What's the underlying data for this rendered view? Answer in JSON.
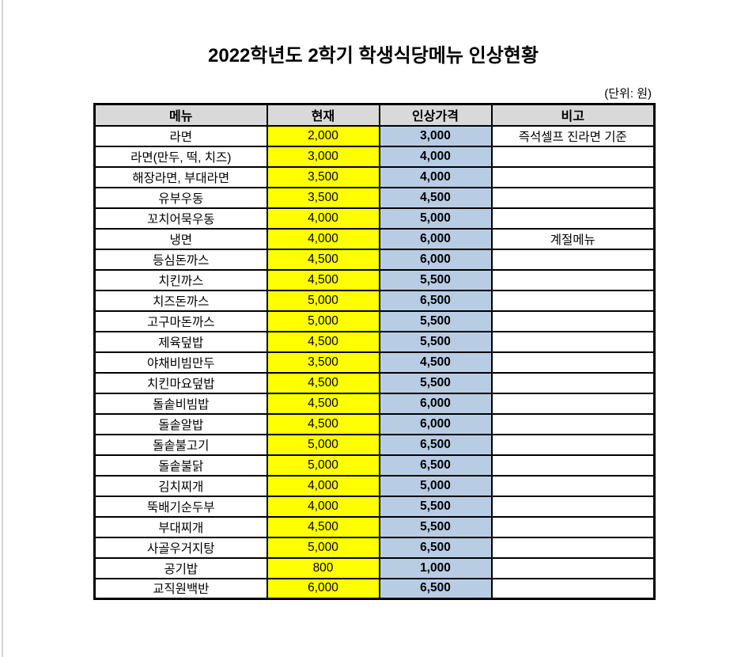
{
  "title": "2022학년도 2학기 학생식당메뉴 인상현황",
  "unit_note": "(단위: 원)",
  "colors": {
    "header_bg": "#d9d9d9",
    "current_bg": "#ffff00",
    "raised_bg": "#b8cce4",
    "raised_text": "#ff0000",
    "border": "#000000"
  },
  "columns": [
    "메뉴",
    "현재",
    "인상가격",
    "비고"
  ],
  "rows": [
    {
      "menu": "라면",
      "current": "2,000",
      "raised": "3,000",
      "note": "즉석셀프 진라면 기준"
    },
    {
      "menu": "라면(만두, 떡, 치즈)",
      "current": "3,000",
      "raised": "4,000",
      "note": ""
    },
    {
      "menu": "해장라면, 부대라면",
      "current": "3,500",
      "raised": "4,000",
      "note": ""
    },
    {
      "menu": "유부우동",
      "current": "3,500",
      "raised": "4,500",
      "note": ""
    },
    {
      "menu": "꼬치어묵우동",
      "current": "4,000",
      "raised": "5,000",
      "note": ""
    },
    {
      "menu": "냉면",
      "current": "4,000",
      "raised": "6,000",
      "note": "계절메뉴"
    },
    {
      "menu": "등심돈까스",
      "current": "4,500",
      "raised": "6,000",
      "note": ""
    },
    {
      "menu": "치킨까스",
      "current": "4,500",
      "raised": "5,500",
      "note": ""
    },
    {
      "menu": "치즈돈까스",
      "current": "5,000",
      "raised": "6,500",
      "note": ""
    },
    {
      "menu": "고구마돈까스",
      "current": "5,000",
      "raised": "5,500",
      "note": ""
    },
    {
      "menu": "제육덮밥",
      "current": "4,500",
      "raised": "5,500",
      "note": ""
    },
    {
      "menu": "야채비빔만두",
      "current": "3,500",
      "raised": "4,500",
      "note": ""
    },
    {
      "menu": "치킨마요덮밥",
      "current": "4,500",
      "raised": "5,500",
      "note": ""
    },
    {
      "menu": "돌솥비빔밥",
      "current": "4,500",
      "raised": "6,000",
      "note": ""
    },
    {
      "menu": "돌솥알밥",
      "current": "4,500",
      "raised": "6,000",
      "note": ""
    },
    {
      "menu": "돌솥불고기",
      "current": "5,000",
      "raised": "6,500",
      "note": ""
    },
    {
      "menu": "돌솥불닭",
      "current": "5,000",
      "raised": "6,500",
      "note": ""
    },
    {
      "menu": "김치찌개",
      "current": "4,000",
      "raised": "5,000",
      "note": ""
    },
    {
      "menu": "뚝배기순두부",
      "current": "4,000",
      "raised": "5,500",
      "note": ""
    },
    {
      "menu": "부대찌개",
      "current": "4,500",
      "raised": "5,500",
      "note": ""
    },
    {
      "menu": "사골우거지탕",
      "current": "5,000",
      "raised": "6,500",
      "note": ""
    },
    {
      "menu": "공기밥",
      "current": "800",
      "raised": "1,000",
      "note": ""
    },
    {
      "menu": "교직원백반",
      "current": "6,000",
      "raised": "6,500",
      "note": ""
    }
  ]
}
